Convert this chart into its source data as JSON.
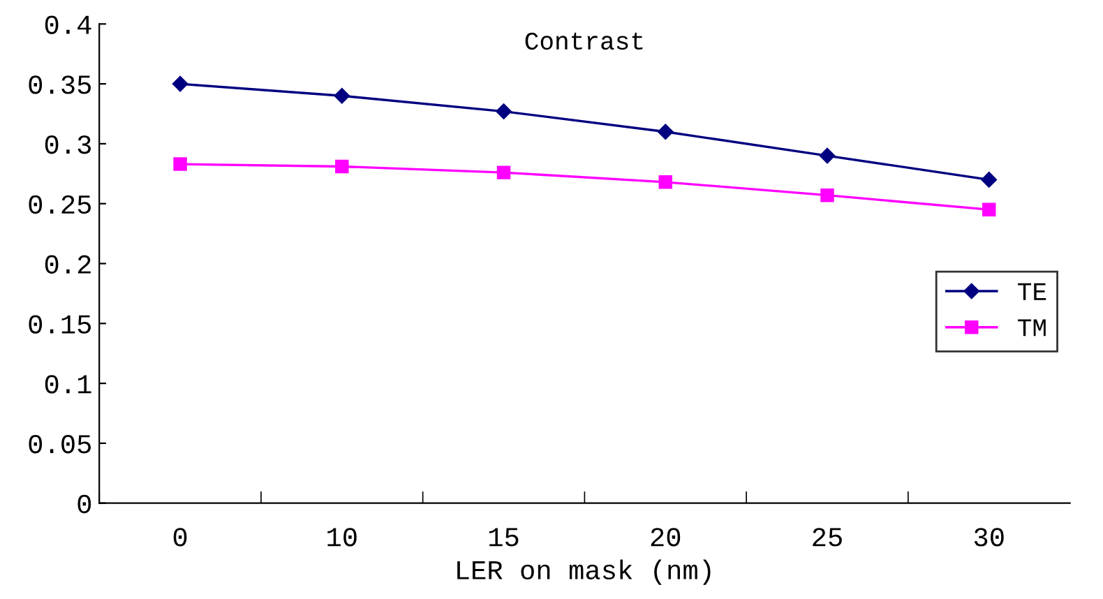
{
  "chart_data": {
    "type": "line",
    "title": "Contrast",
    "xlabel": "LER on mask (nm)",
    "categories": [
      "0",
      "10",
      "15",
      "20",
      "25",
      "30"
    ],
    "series": [
      {
        "name": "TE",
        "color": "#000080",
        "values": [
          0.35,
          0.34,
          0.327,
          0.31,
          0.29,
          0.27
        ],
        "marker": "diamond"
      },
      {
        "name": "TM",
        "color": "#ff00ff",
        "values": [
          0.283,
          0.281,
          0.276,
          0.268,
          0.257,
          0.245
        ],
        "marker": "square"
      }
    ],
    "ylim": [
      0,
      0.4
    ],
    "yticks": [
      0,
      0.05,
      0.1,
      0.15,
      0.2,
      0.25,
      0.3,
      0.35,
      0.4
    ],
    "grid": false,
    "legend": "right"
  }
}
